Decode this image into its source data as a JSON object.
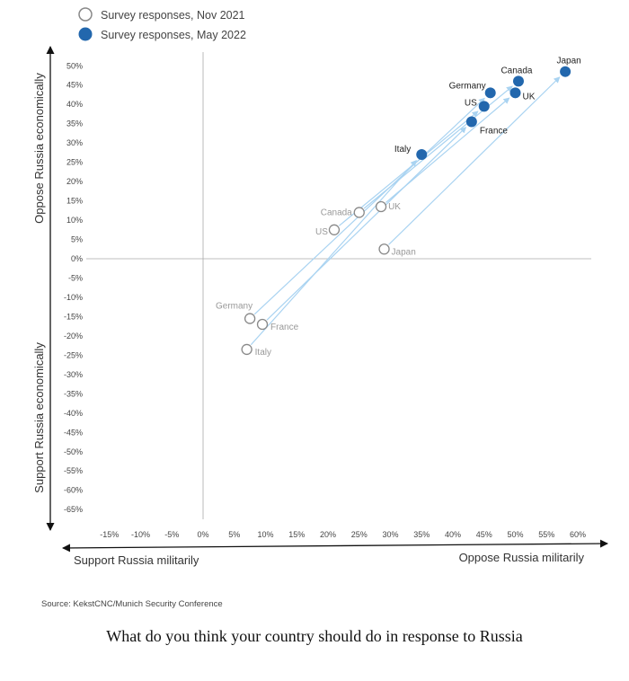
{
  "chart_data": {
    "type": "scatter",
    "title": "",
    "legend": [
      {
        "label": "Survey responses, Nov 2021",
        "style": "hollow",
        "color": "#ffffff"
      },
      {
        "label": "Survey responses, May 2022",
        "style": "filled",
        "color": "#2267ad"
      }
    ],
    "legend_position": "top-left",
    "x_ticks": [
      "-15%",
      "-10%",
      "-5%",
      "0%",
      "5%",
      "10%",
      "15%",
      "20%",
      "25%",
      "30%",
      "35%",
      "40%",
      "45%",
      "50%",
      "55%",
      "60%"
    ],
    "y_ticks": [
      "50%",
      "45%",
      "40%",
      "35%",
      "30%",
      "25%",
      "20%",
      "15%",
      "10%",
      "5%",
      "0%",
      "-5%",
      "-10%",
      "-15%",
      "-20%",
      "-25%",
      "-30%",
      "-35%",
      "-40%",
      "-45%",
      "-50%",
      "-55%",
      "-60%",
      "-65%"
    ],
    "xlim": [
      -15,
      60
    ],
    "ylim": [
      -65,
      50
    ],
    "x_left_label": "Support Russia militarily",
    "x_right_label": "Oppose Russia militarily",
    "y_top_label": "Oppose Russia economically",
    "y_bottom_label": "Support Russia economically",
    "series": [
      {
        "name": "Survey responses, Nov 2021",
        "points": [
          {
            "label": "Canada",
            "x": 25,
            "y": 12
          },
          {
            "label": "UK",
            "x": 28.5,
            "y": 13.5
          },
          {
            "label": "US",
            "x": 21,
            "y": 7.5
          },
          {
            "label": "Japan",
            "x": 29,
            "y": 2.5
          },
          {
            "label": "Germany",
            "x": 7.5,
            "y": -15.5
          },
          {
            "label": "France",
            "x": 9.5,
            "y": -17
          },
          {
            "label": "Italy",
            "x": 7,
            "y": -23.5
          }
        ]
      },
      {
        "name": "Survey responses, May 2022",
        "points": [
          {
            "label": "Japan",
            "x": 58,
            "y": 48.5
          },
          {
            "label": "Canada",
            "x": 50.5,
            "y": 46
          },
          {
            "label": "Germany",
            "x": 46,
            "y": 43
          },
          {
            "label": "UK",
            "x": 50,
            "y": 43
          },
          {
            "label": "US",
            "x": 45,
            "y": 39.5
          },
          {
            "label": "France",
            "x": 43,
            "y": 35.5
          },
          {
            "label": "Italy",
            "x": 35,
            "y": 27
          }
        ]
      }
    ],
    "arrow_color": "#a9d3f1",
    "source": "Source: KekstCNC/Munich Security Conference"
  },
  "caption": "What do you think your country should do in response to Russia"
}
